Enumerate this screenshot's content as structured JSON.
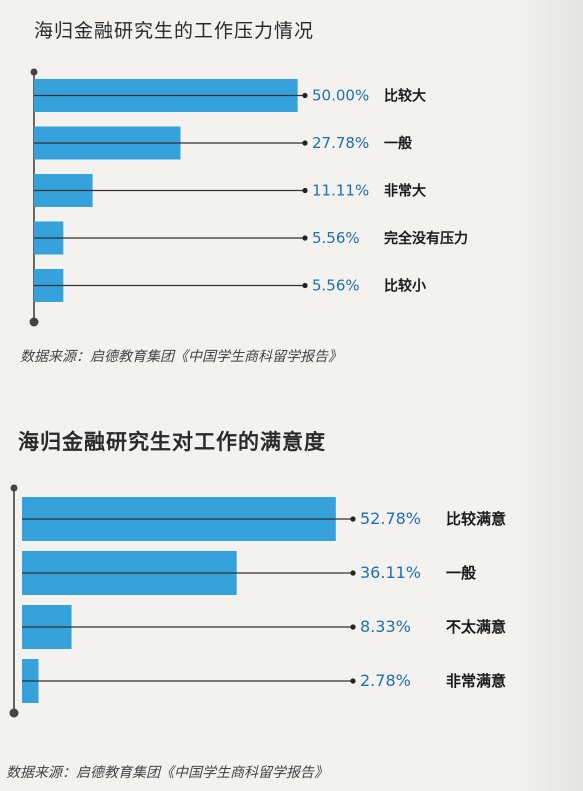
{
  "chart_data": [
    {
      "type": "bar",
      "title": "海归金融研究生的工作压力情况",
      "orientation": "horizontal",
      "categories": [
        "比较大",
        "一般",
        "非常大",
        "完全没有压力",
        "比较小"
      ],
      "values": [
        50.0,
        27.78,
        11.11,
        5.56,
        5.56
      ],
      "value_labels": [
        "50.00%",
        "27.78%",
        "11.11%",
        "5.56%",
        "5.56%"
      ],
      "unit": "%",
      "bar_color": "#35a2dc",
      "xlim": [
        0,
        55
      ],
      "grid": false,
      "source": "数据来源：启德教育集团《中国学生商科留学报告》"
    },
    {
      "type": "bar",
      "title": "海归金融研究生对工作的满意度",
      "orientation": "horizontal",
      "categories": [
        "比较满意",
        "一般",
        "不太满意",
        "非常满意"
      ],
      "values": [
        52.78,
        36.11,
        8.33,
        2.78
      ],
      "value_labels": [
        "52.78%",
        "36.11%",
        "8.33%",
        "2.78%"
      ],
      "unit": "%",
      "bar_color": "#35a2dc",
      "xlim": [
        0,
        55
      ],
      "grid": false,
      "source": "数据来源：启德教育集团《中国学生商科留学报告》"
    }
  ]
}
